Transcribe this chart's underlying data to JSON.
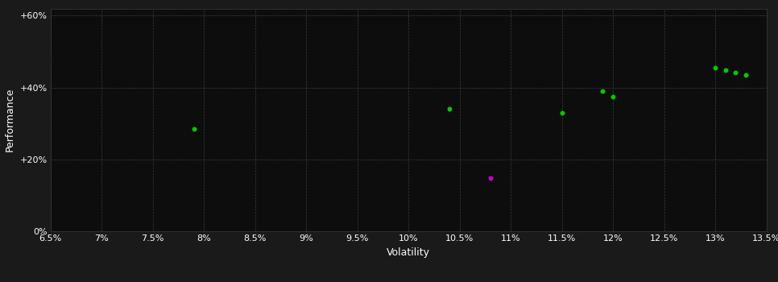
{
  "fig_bg_color": "#1a1a1a",
  "plot_bg_color": "#0d0d0d",
  "grid_color": "#3a3a4a",
  "text_color": "#ffffff",
  "xlabel": "Volatility",
  "ylabel": "Performance",
  "xlim": [
    0.065,
    0.135
  ],
  "ylim": [
    0.0,
    0.62
  ],
  "xticks": [
    0.065,
    0.07,
    0.075,
    0.08,
    0.085,
    0.09,
    0.095,
    0.1,
    0.105,
    0.11,
    0.115,
    0.12,
    0.125,
    0.13,
    0.135
  ],
  "yticks": [
    0.0,
    0.2,
    0.4,
    0.6
  ],
  "ytick_labels": [
    "0%",
    "+20%",
    "+40%",
    "+60%"
  ],
  "xtick_labels": [
    "6.5%",
    "7%",
    "7.5%",
    "8%",
    "8.5%",
    "9%",
    "9.5%",
    "10%",
    "10.5%",
    "11%",
    "11.5%",
    "12%",
    "12.5%",
    "13%",
    "13.5%"
  ],
  "green_points": [
    [
      0.079,
      0.285
    ],
    [
      0.104,
      0.34
    ],
    [
      0.115,
      0.33
    ],
    [
      0.119,
      0.39
    ],
    [
      0.12,
      0.375
    ],
    [
      0.13,
      0.455
    ],
    [
      0.131,
      0.448
    ],
    [
      0.132,
      0.442
    ],
    [
      0.133,
      0.435
    ]
  ],
  "magenta_points": [
    [
      0.108,
      0.148
    ]
  ],
  "green_color": "#00cc00",
  "magenta_color": "#cc00cc",
  "marker_size": 18,
  "font_size_ticks": 8,
  "font_size_label": 9
}
